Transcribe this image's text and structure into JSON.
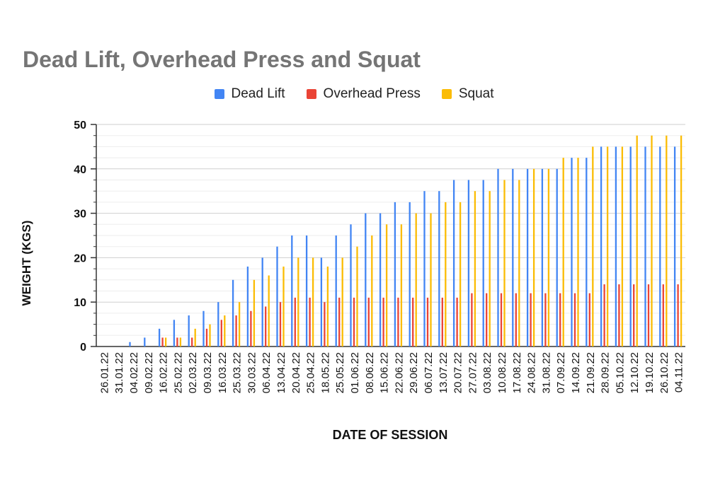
{
  "chart_data": {
    "type": "bar",
    "title": "Dead Lift, Overhead Press and Squat",
    "xlabel": "DATE OF SESSION",
    "ylabel": "WEIGHT (KGS)",
    "ylim": [
      0,
      50
    ],
    "yticks": [
      0,
      10,
      20,
      30,
      40,
      50
    ],
    "grid": true,
    "legend_position": "top",
    "categories": [
      "26.01.22",
      "31.01.22",
      "04.02.22",
      "09.02.22",
      "16.02.22",
      "25.02.22",
      "02.03.22",
      "09.03.22",
      "16.03.22",
      "25.03.22",
      "30.03.22",
      "06.04.22",
      "13.04.22",
      "20.04.22",
      "25.04.22",
      "18.05.22",
      "25.05.22",
      "01.06.22",
      "08.06.22",
      "15.06.22",
      "22.06.22",
      "29.06.22",
      "06.07.22",
      "13.07.22",
      "20.07.22",
      "27.07.22",
      "03.08.22",
      "10.08.22",
      "17.08.22",
      "24.08.22",
      "31.08.22",
      "07.09.22",
      "14.09.22",
      "21.09.22",
      "28.09.22",
      "05.10.22",
      "12.10.22",
      "19.10.22",
      "26.10.22",
      "04.11.22"
    ],
    "tick_labels": [
      "26.01.22",
      "31.01.22",
      "04.02.22",
      "09.02.22",
      "16.02.22",
      "25.02.22",
      "02.03.22",
      "09.03.22",
      "16.03.22",
      "25.03.22",
      "30.03.22",
      "06.04.22",
      "13.04.22",
      "20.04.22",
      "25.04.22",
      "18.05.22",
      "25.05.22",
      "01.06.22",
      "08.06.22",
      "15.06.22",
      "22.06.22",
      "29.06.22",
      "06.07.22",
      "13.07.22",
      "20.07.22",
      "27.07.22",
      "03.08.22",
      "10.08.22",
      "17.08.22",
      "24.08.22",
      "31.08.22",
      "07.09.22",
      "14.09.22",
      "21.09.22",
      "28.09.22",
      "05.10.22",
      "12.10.22",
      "19.10.22",
      "26.10.22",
      "04.11.22"
    ],
    "series": [
      {
        "name": "Dead Lift",
        "color": "#4285f4",
        "values": [
          0,
          0,
          1,
          2,
          4,
          6,
          7,
          8,
          10,
          15,
          18,
          20,
          22.5,
          25,
          25,
          20,
          25,
          27.5,
          30,
          30,
          32.5,
          32.5,
          35,
          35,
          37.5,
          37.5,
          37.5,
          40,
          40,
          40,
          40,
          40,
          42.5,
          42.5,
          45,
          45,
          45,
          45,
          45,
          45
        ]
      },
      {
        "name": "Overhead Press",
        "color": "#ea4335",
        "values": [
          0,
          0,
          0,
          0,
          2,
          2,
          2,
          4,
          6,
          7,
          8,
          9,
          10,
          11,
          11,
          10,
          11,
          11,
          11,
          11,
          11,
          11,
          11,
          11,
          11,
          12,
          12,
          12,
          12,
          12,
          12,
          12,
          12,
          12,
          14,
          14,
          14,
          14,
          14,
          14
        ]
      },
      {
        "name": "Squat",
        "color": "#fbbc04",
        "values": [
          0,
          0,
          0,
          0,
          2,
          2,
          4,
          5,
          7,
          10,
          15,
          16,
          18,
          20,
          20,
          18,
          20,
          22.5,
          25,
          27.5,
          27.5,
          30,
          30,
          32.5,
          32.5,
          35,
          35,
          37.5,
          37.5,
          40,
          40,
          42.5,
          42.5,
          45,
          45,
          45,
          47.5,
          47.5,
          47.5,
          47.5
        ]
      }
    ]
  }
}
